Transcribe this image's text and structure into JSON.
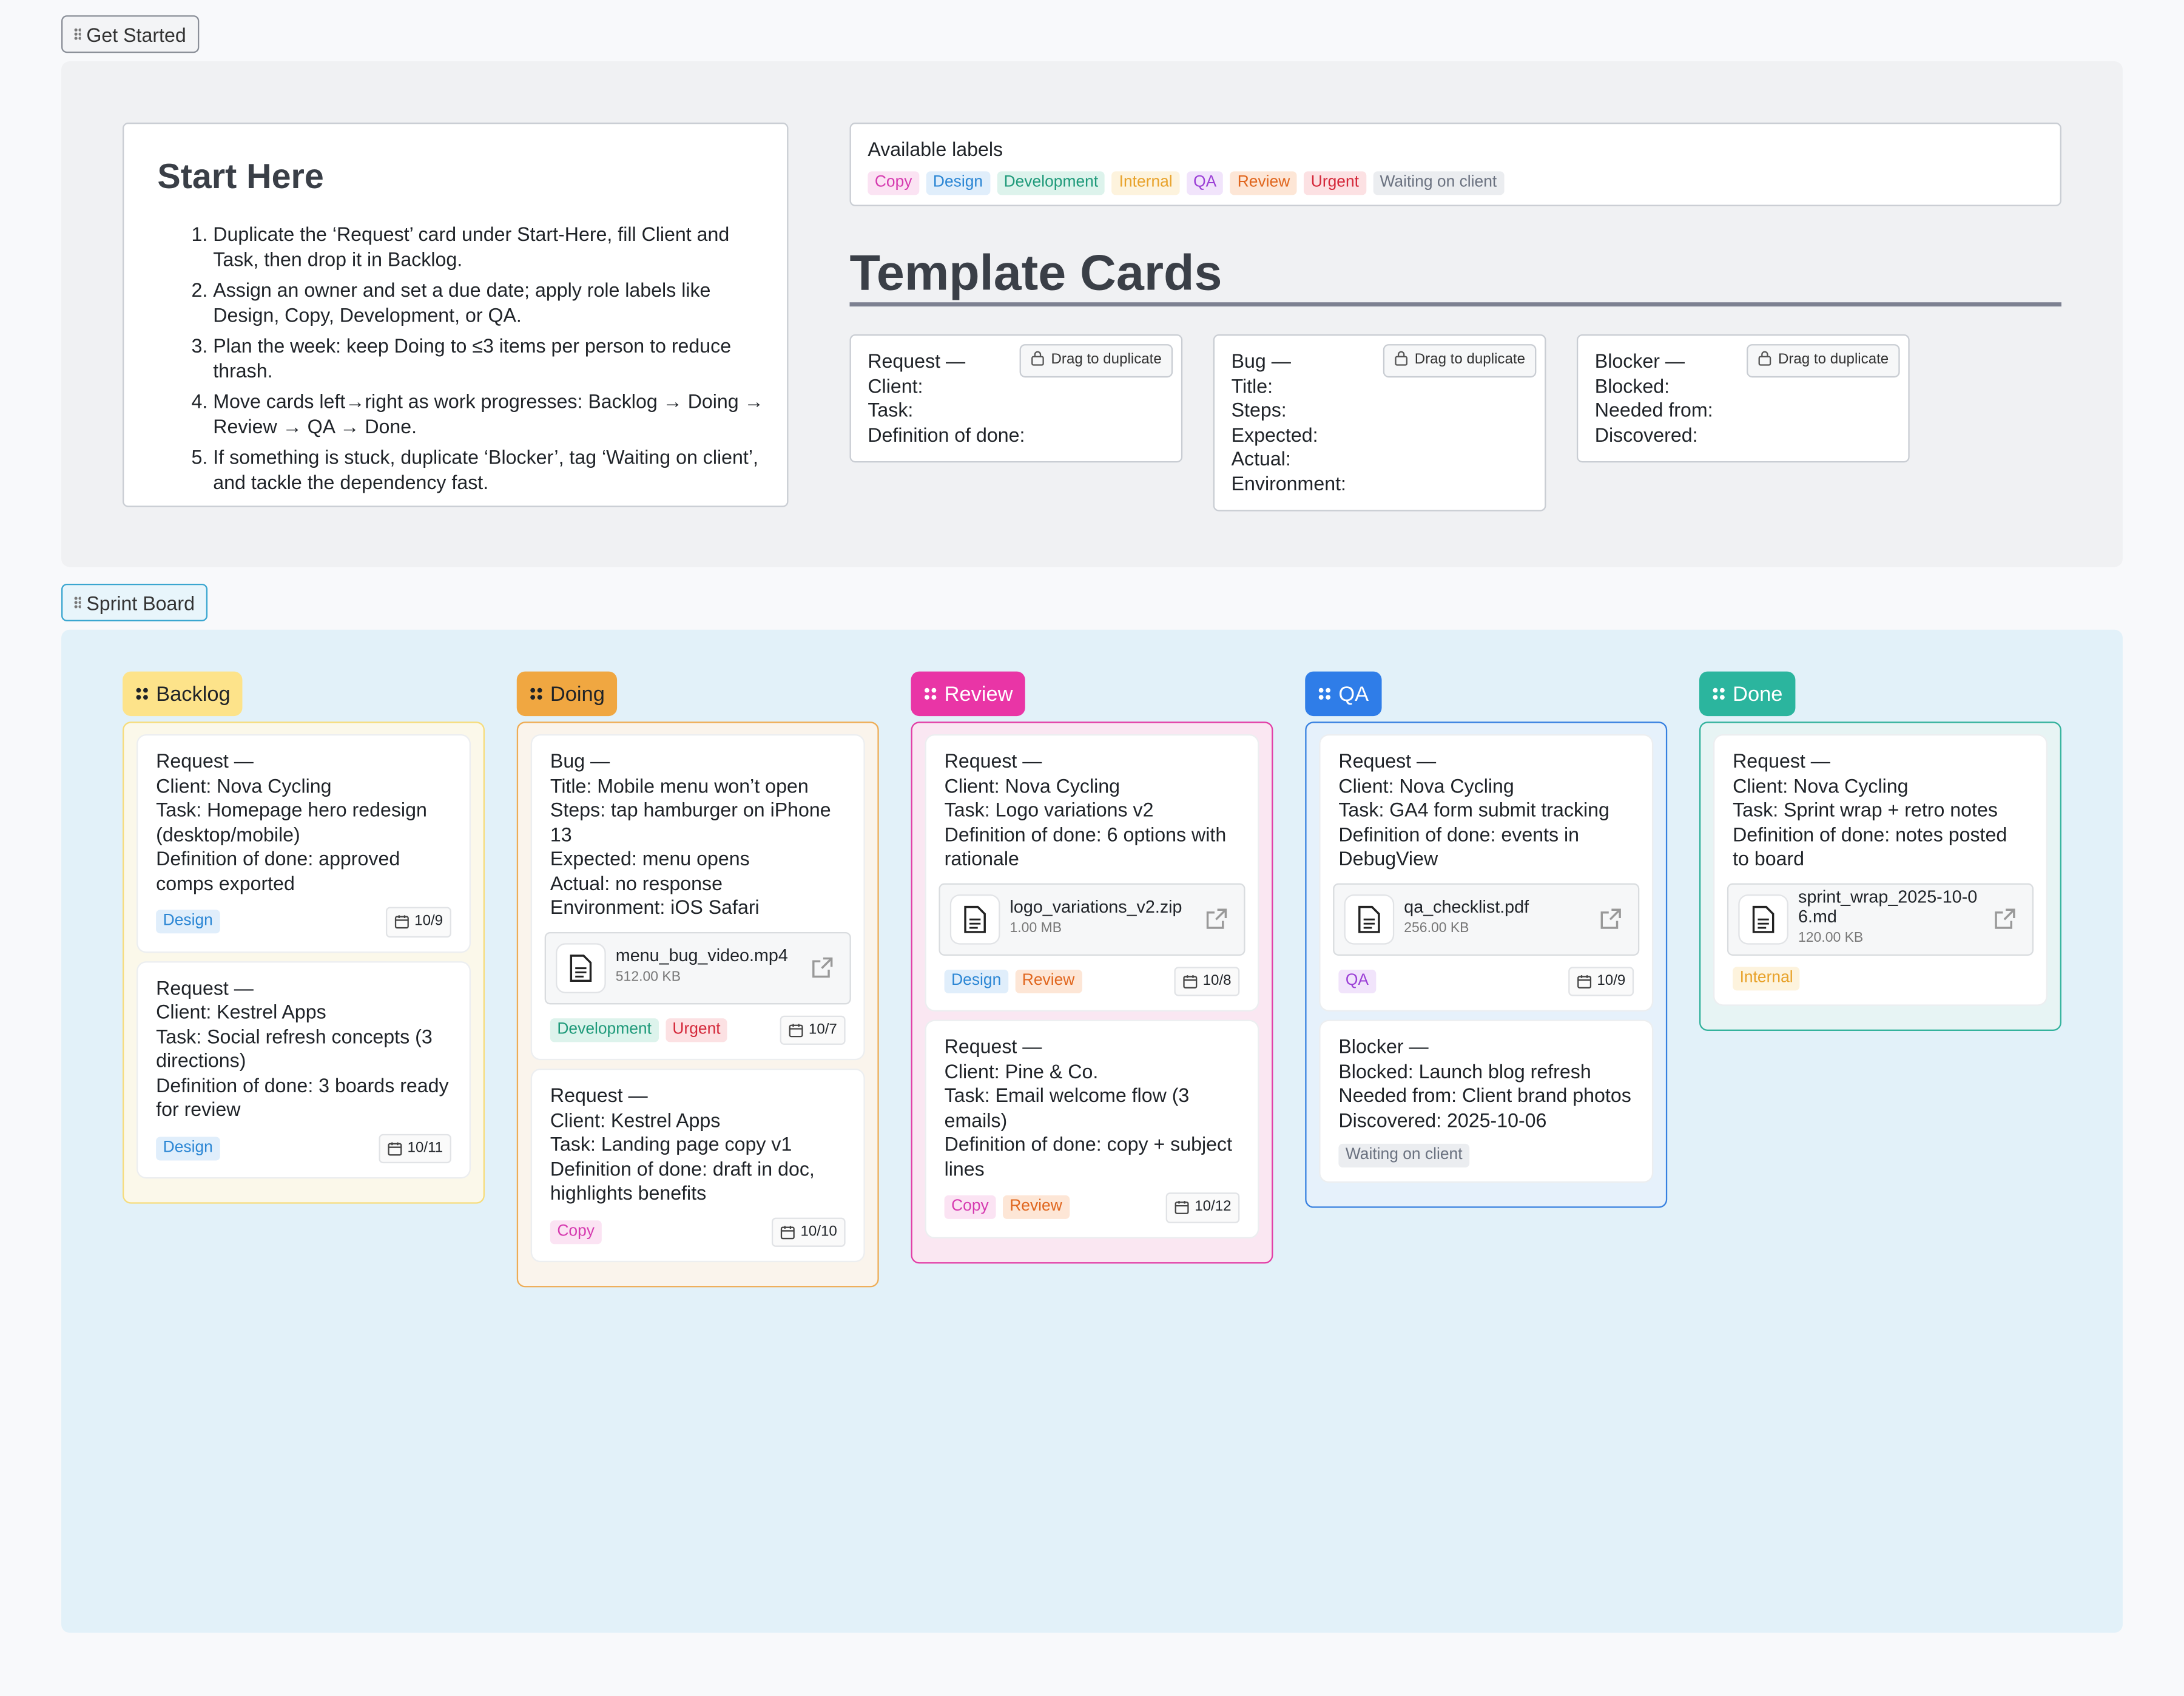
{
  "frames": [
    {
      "label": "Get Started"
    },
    {
      "label": "Sprint Board"
    }
  ],
  "start_here": {
    "title": "Start Here",
    "steps": [
      "Duplicate the ‘Request’ card under Start-Here, fill Client and Task, then drop it in Backlog.",
      "Assign an owner and set a due date; apply role labels like Design, Copy, Development, or QA.",
      "Plan the week: keep Doing to ≤3 items per person to reduce thrash.",
      "Move cards left→right as work progresses: Backlog → Doing → Review → QA → Done.",
      "If something is stuck, duplicate ‘Blocker’, tag ‘Waiting on client’, and tackle the dependency fast."
    ]
  },
  "labels": {
    "title": "Available labels",
    "items": [
      {
        "text": "Copy",
        "color": "#d63bb0",
        "bg": "#fbe3f3"
      },
      {
        "text": "Design",
        "color": "#2b86d4",
        "bg": "#e0eefb"
      },
      {
        "text": "Development",
        "color": "#1f9a7a",
        "bg": "#ddf3ec"
      },
      {
        "text": "Internal",
        "color": "#e8a22a",
        "bg": "#fdf3dd"
      },
      {
        "text": "QA",
        "color": "#9b3fd6",
        "bg": "#f1e4fb"
      },
      {
        "text": "Review",
        "color": "#e0661e",
        "bg": "#fde6d6"
      },
      {
        "text": "Urgent",
        "color": "#d4283a",
        "bg": "#fce1e3"
      },
      {
        "text": "Waiting on client",
        "color": "#6b7280",
        "bg": "#ebedf0"
      }
    ]
  },
  "templates": {
    "title": "Template Cards",
    "cards": [
      {
        "action": "Drag to duplicate",
        "lines": [
          "Request —",
          "Client:",
          "Task:",
          "Definition of done:"
        ]
      },
      {
        "action": "Drag to duplicate",
        "lines": [
          "Bug —",
          "Title:",
          "Steps:",
          "Expected:",
          "Actual:",
          "Environment:"
        ]
      },
      {
        "action": "Drag to duplicate",
        "lines": [
          "Blocker —",
          "Blocked:",
          "Needed from:",
          "Discovered:"
        ]
      }
    ]
  },
  "board": {
    "columns": [
      {
        "name": "Backlog",
        "color": "#fde38a",
        "border": "#f6dc7c",
        "bg": "#fbf8ea",
        "text": "#1f2328",
        "cards": [
          {
            "lines": [
              "Request —",
              "Client: Nova Cycling",
              "Task: Homepage hero redesign (desktop/mobile)",
              "Definition of done: approved comps exported"
            ],
            "tags": [
              "Design"
            ],
            "date": "10/9"
          },
          {
            "lines": [
              "Request —",
              "Client: Kestrel Apps",
              "Task: Social refresh concepts (3 directions)",
              "Definition of done: 3 boards ready for review"
            ],
            "tags": [
              "Design"
            ],
            "date": "10/11"
          }
        ]
      },
      {
        "name": "Doing",
        "color": "#f0a741",
        "border": "#eeac55",
        "bg": "#faf4ec",
        "text": "#1f2328",
        "cards": [
          {
            "lines": [
              "Bug —",
              "Title: Mobile menu won’t open",
              "Steps: tap hamburger on iPhone 13",
              "Expected: menu opens",
              "Actual: no response",
              "Environment: iOS Safari"
            ],
            "file": {
              "name": "menu_bug_video.mp4",
              "size": "512.00 KB"
            },
            "tags": [
              "Development",
              "Urgent"
            ],
            "date": "10/7"
          },
          {
            "lines": [
              "Request —",
              "Client: Kestrel Apps",
              "Task: Landing page copy v1",
              "Definition of done: draft in doc, highlights benefits"
            ],
            "tags": [
              "Copy"
            ],
            "date": "10/10"
          }
        ]
      },
      {
        "name": "Review",
        "color": "#e935a6",
        "border": "#e23ea6",
        "bg": "#fae7f2",
        "text": "#ffffff",
        "cards": [
          {
            "lines": [
              "Request —",
              "Client: Nova Cycling",
              "Task: Logo variations v2",
              "Definition of done: 6 options with rationale"
            ],
            "file": {
              "name": "logo_variations_v2.zip",
              "size": "1.00 MB"
            },
            "tags": [
              "Design",
              "Review"
            ],
            "date": "10/8"
          },
          {
            "lines": [
              "Request —",
              "Client: Pine & Co.",
              "Task: Email welcome flow (3 emails)",
              "Definition of done: copy + subject lines"
            ],
            "tags": [
              "Copy",
              "Review"
            ],
            "date": "10/12"
          }
        ]
      },
      {
        "name": "QA",
        "color": "#2f7de8",
        "border": "#3680e0",
        "bg": "#e6f1fb",
        "text": "#ffffff",
        "cards": [
          {
            "lines": [
              "Request —",
              "Client: Nova Cycling",
              "Task: GA4 form submit tracking",
              "Definition of done: events in DebugView"
            ],
            "file": {
              "name": "qa_checklist.pdf",
              "size": "256.00 KB"
            },
            "tags": [
              "QA"
            ],
            "date": "10/9"
          },
          {
            "lines": [
              "Blocker —",
              "Blocked: Launch blog refresh",
              "Needed from: Client brand photos",
              "Discovered: 2025-10-06"
            ],
            "tags": [
              "Waiting on client"
            ]
          }
        ]
      },
      {
        "name": "Done",
        "color": "#2bb59e",
        "border": "#33b29c",
        "bg": "#e7f4f4",
        "text": "#ffffff",
        "cards": [
          {
            "lines": [
              "Request —",
              "Client: Nova Cycling",
              "Task: Sprint wrap + retro notes",
              "Definition of done: notes posted to board"
            ],
            "file": {
              "name": "sprint_wrap_2025-10-06.md",
              "size": "120.00 KB"
            },
            "tags": [
              "Internal"
            ]
          }
        ]
      }
    ]
  }
}
